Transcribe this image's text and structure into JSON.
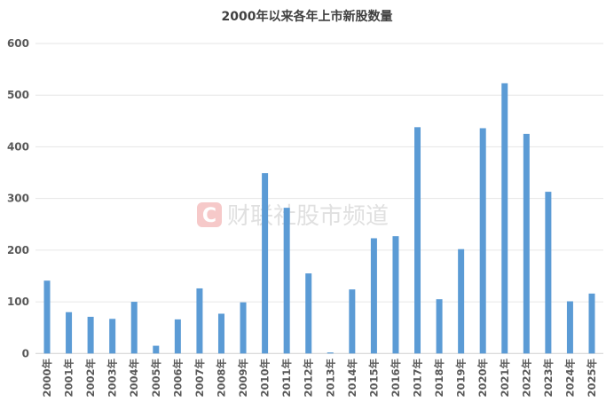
{
  "chart_data": {
    "type": "bar",
    "title": "2000年以来各年上市新股数量",
    "categories": [
      "2000年",
      "2001年",
      "2002年",
      "2003年",
      "2004年",
      "2005年",
      "2006年",
      "2007年",
      "2008年",
      "2009年",
      "2010年",
      "2011年",
      "2012年",
      "2013年",
      "2014年",
      "2015年",
      "2016年",
      "2017年",
      "2018年",
      "2019年",
      "2020年",
      "2021年",
      "2022年",
      "2023年",
      "2024年",
      "2025年"
    ],
    "values": [
      141,
      80,
      71,
      67,
      100,
      15,
      66,
      126,
      77,
      99,
      349,
      282,
      155,
      2,
      124,
      223,
      227,
      438,
      105,
      202,
      436,
      523,
      425,
      313,
      101,
      116
    ],
    "ylim": [
      0,
      600
    ],
    "yticks": [
      0,
      100,
      200,
      300,
      400,
      500,
      600
    ],
    "grid": true,
    "bar_color": "#5b9bd5",
    "xlabel": "",
    "ylabel": ""
  },
  "watermark": {
    "logo": "C",
    "text": "财联社股市频道",
    "logo_color": "#f4b8b8"
  }
}
